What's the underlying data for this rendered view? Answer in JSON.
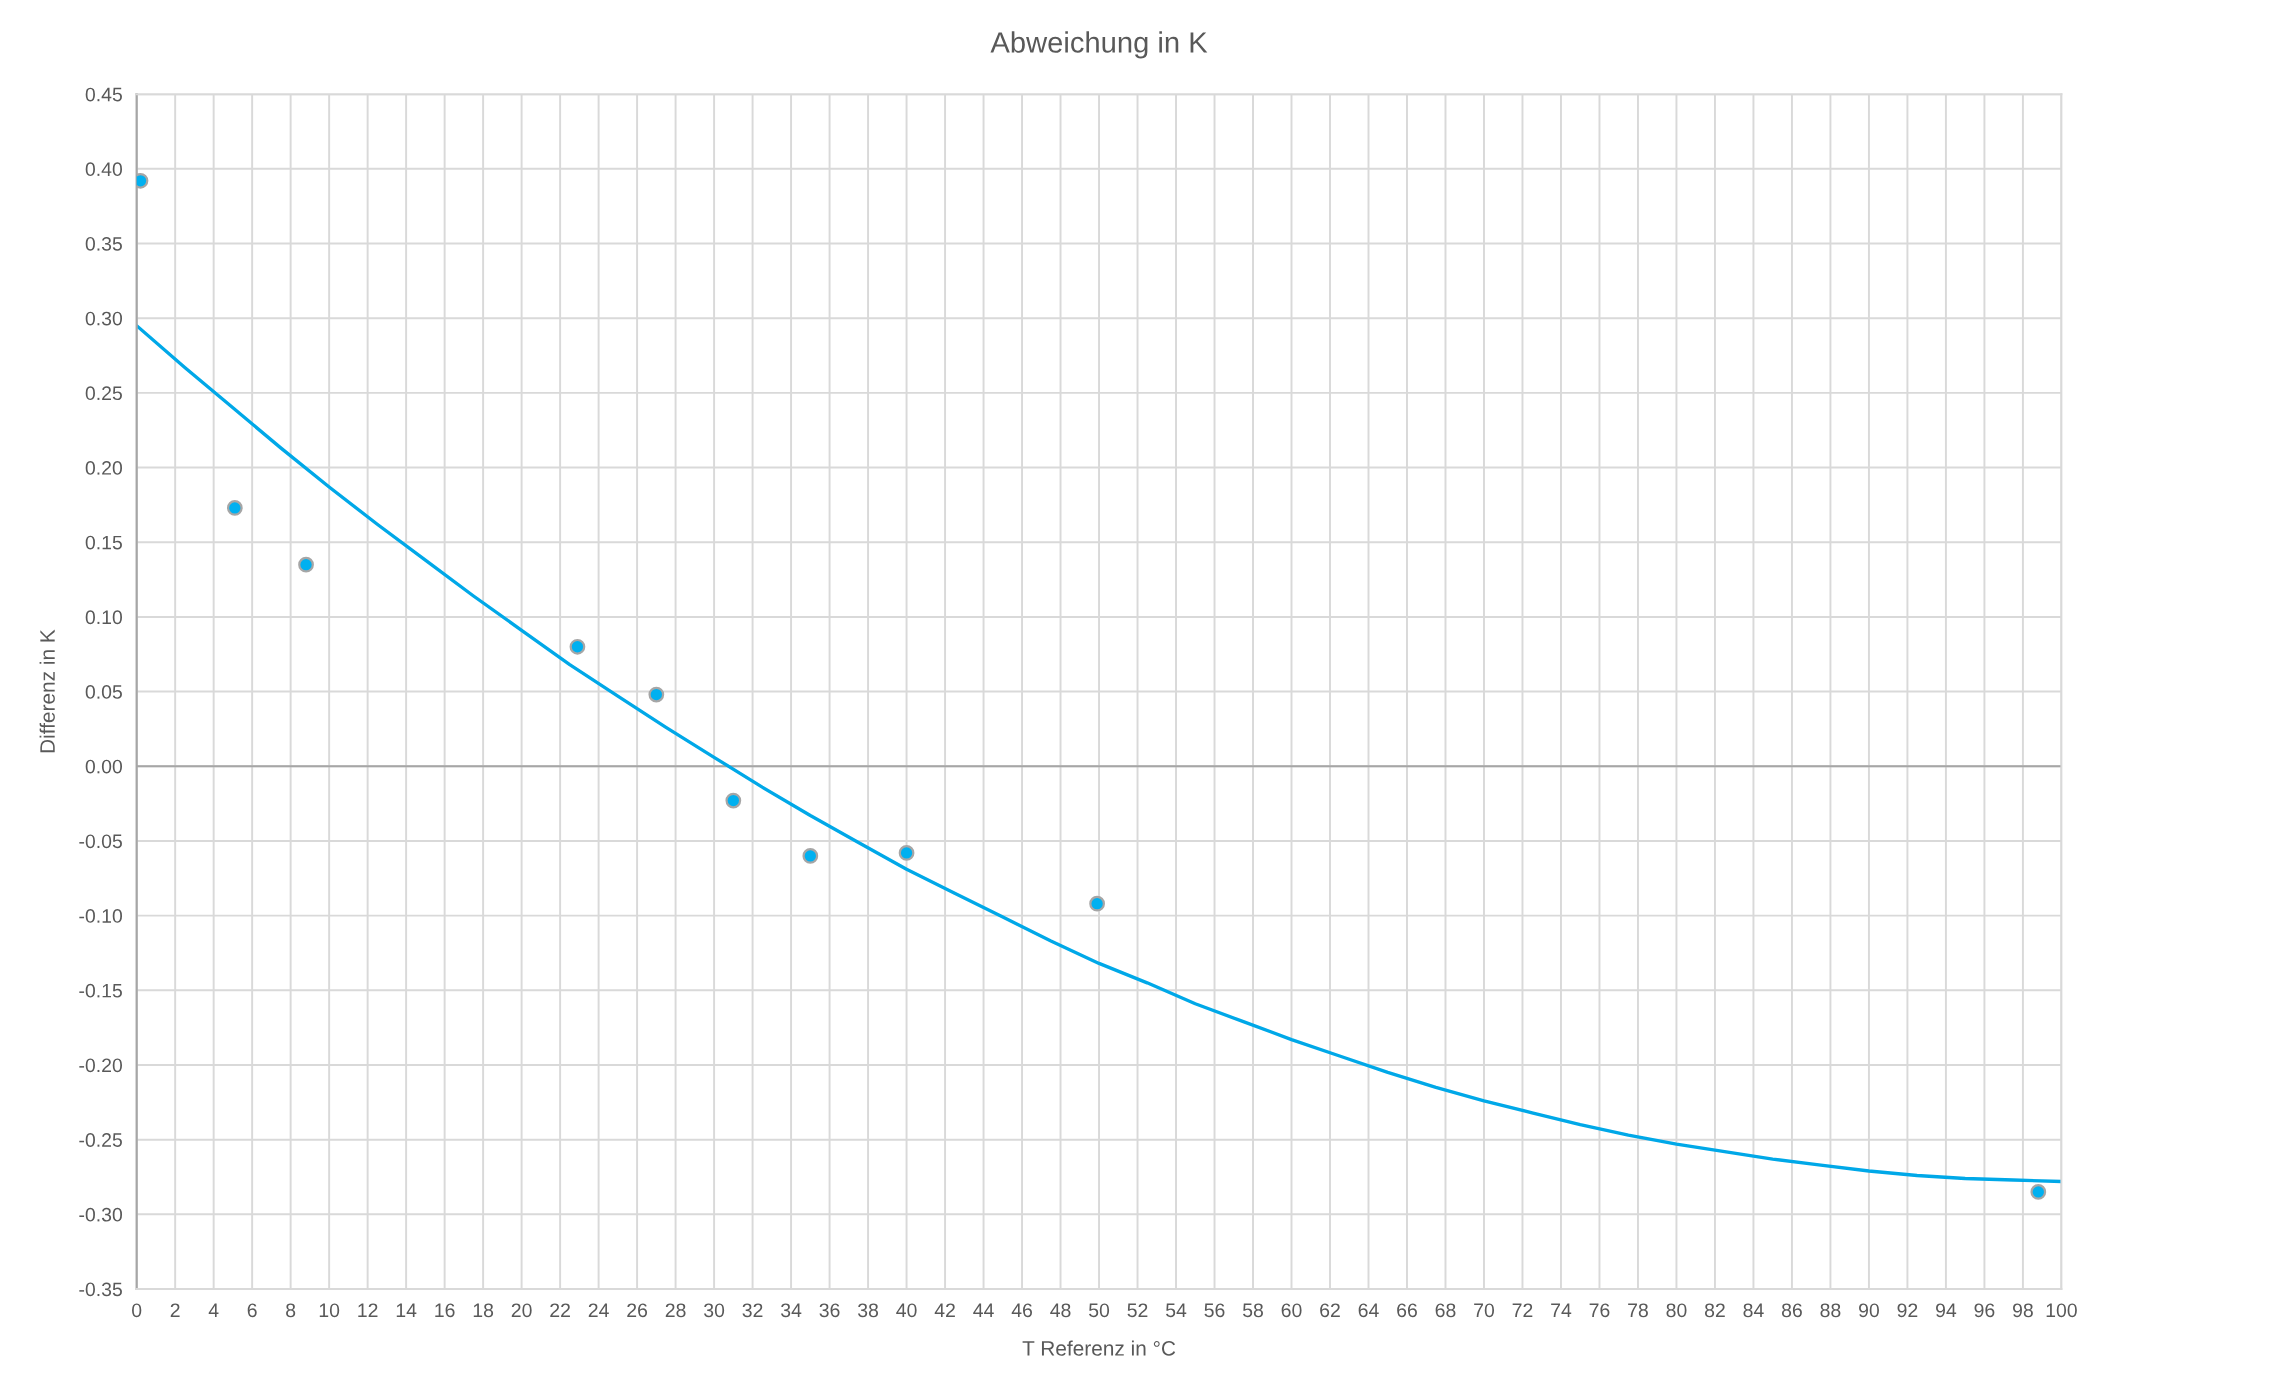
{
  "chart_data": {
    "type": "scatter",
    "title": "Abweichung in K",
    "xlabel": "T Referenz in °C",
    "ylabel": "Differenz in K",
    "series": [
      {
        "type": "line",
        "color": "#00a8e8",
        "x": [
          0,
          2.5,
          5,
          7.5,
          10,
          12.5,
          15,
          17.5,
          20,
          22.5,
          25,
          27.5,
          30,
          32.5,
          35,
          37.5,
          40,
          42.5,
          45,
          47.5,
          50,
          52.5,
          55,
          57.5,
          60,
          62.5,
          65,
          67.5,
          70,
          72.5,
          75,
          77.5,
          80,
          82.5,
          85,
          87.5,
          90,
          92.5,
          95,
          97.5,
          100
        ],
        "values": [
          0.295,
          0.267,
          0.24,
          0.213,
          0.187,
          0.162,
          0.138,
          0.114,
          0.091,
          0.068,
          0.047,
          0.026,
          0.006,
          -0.014,
          -0.033,
          -0.051,
          -0.069,
          -0.085,
          -0.101,
          -0.117,
          -0.132,
          -0.145,
          -0.159,
          -0.171,
          -0.183,
          -0.194,
          -0.205,
          -0.215,
          -0.224,
          -0.232,
          -0.24,
          -0.247,
          -0.253,
          -0.258,
          -0.263,
          -0.267,
          -0.271,
          -0.274,
          -0.276,
          -0.277,
          -0.278
        ]
      },
      {
        "color": "#00b0f0",
        "marker": "circle",
        "x": [
          0.2,
          5.1,
          8.8,
          22.9,
          27.0,
          31.0,
          35.0,
          40.0,
          49.9,
          98.8
        ],
        "values": [
          0.392,
          0.173,
          0.135,
          0.08,
          0.048,
          -0.023,
          -0.06,
          -0.058,
          -0.092,
          -0.285
        ]
      }
    ],
    "xlim": [
      0,
      100
    ],
    "xticks": [
      0,
      2,
      4,
      6,
      8,
      10,
      12,
      14,
      16,
      18,
      20,
      22,
      24,
      26,
      28,
      30,
      32,
      34,
      36,
      38,
      40,
      42,
      44,
      46,
      48,
      50,
      52,
      54,
      56,
      58,
      60,
      62,
      64,
      66,
      68,
      70,
      72,
      74,
      76,
      78,
      80,
      82,
      84,
      86,
      88,
      90,
      92,
      94,
      96,
      98,
      100
    ],
    "ylim": [
      -0.35,
      0.45
    ],
    "yticks": [
      {
        "value": -0.35,
        "label": "-0.35"
      },
      {
        "value": -0.3,
        "label": "-0.30"
      },
      {
        "value": -0.25,
        "label": "-0.25"
      },
      {
        "value": -0.2,
        "label": "-0.20"
      },
      {
        "value": -0.15,
        "label": "-0.15"
      },
      {
        "value": -0.1,
        "label": "-0.10"
      },
      {
        "value": -0.05,
        "label": "-0.05"
      },
      {
        "value": 0,
        "label": "0.00"
      },
      {
        "value": 0.05,
        "label": "0.05"
      },
      {
        "value": 0.1,
        "label": "0.10"
      },
      {
        "value": 0.15,
        "label": "0.15"
      },
      {
        "value": 0.2,
        "label": "0.20"
      },
      {
        "value": 0.25,
        "label": "0.25"
      },
      {
        "value": 0.3,
        "label": "0.30"
      },
      {
        "value": 0.35,
        "label": "0.35"
      },
      {
        "value": 0.4,
        "label": "0.40"
      },
      {
        "value": 0.45,
        "label": "0.45"
      }
    ],
    "ref_lines": [
      {
        "axis": "y",
        "value": 0,
        "color": "#a6a6a6"
      }
    ],
    "grid": true
  }
}
